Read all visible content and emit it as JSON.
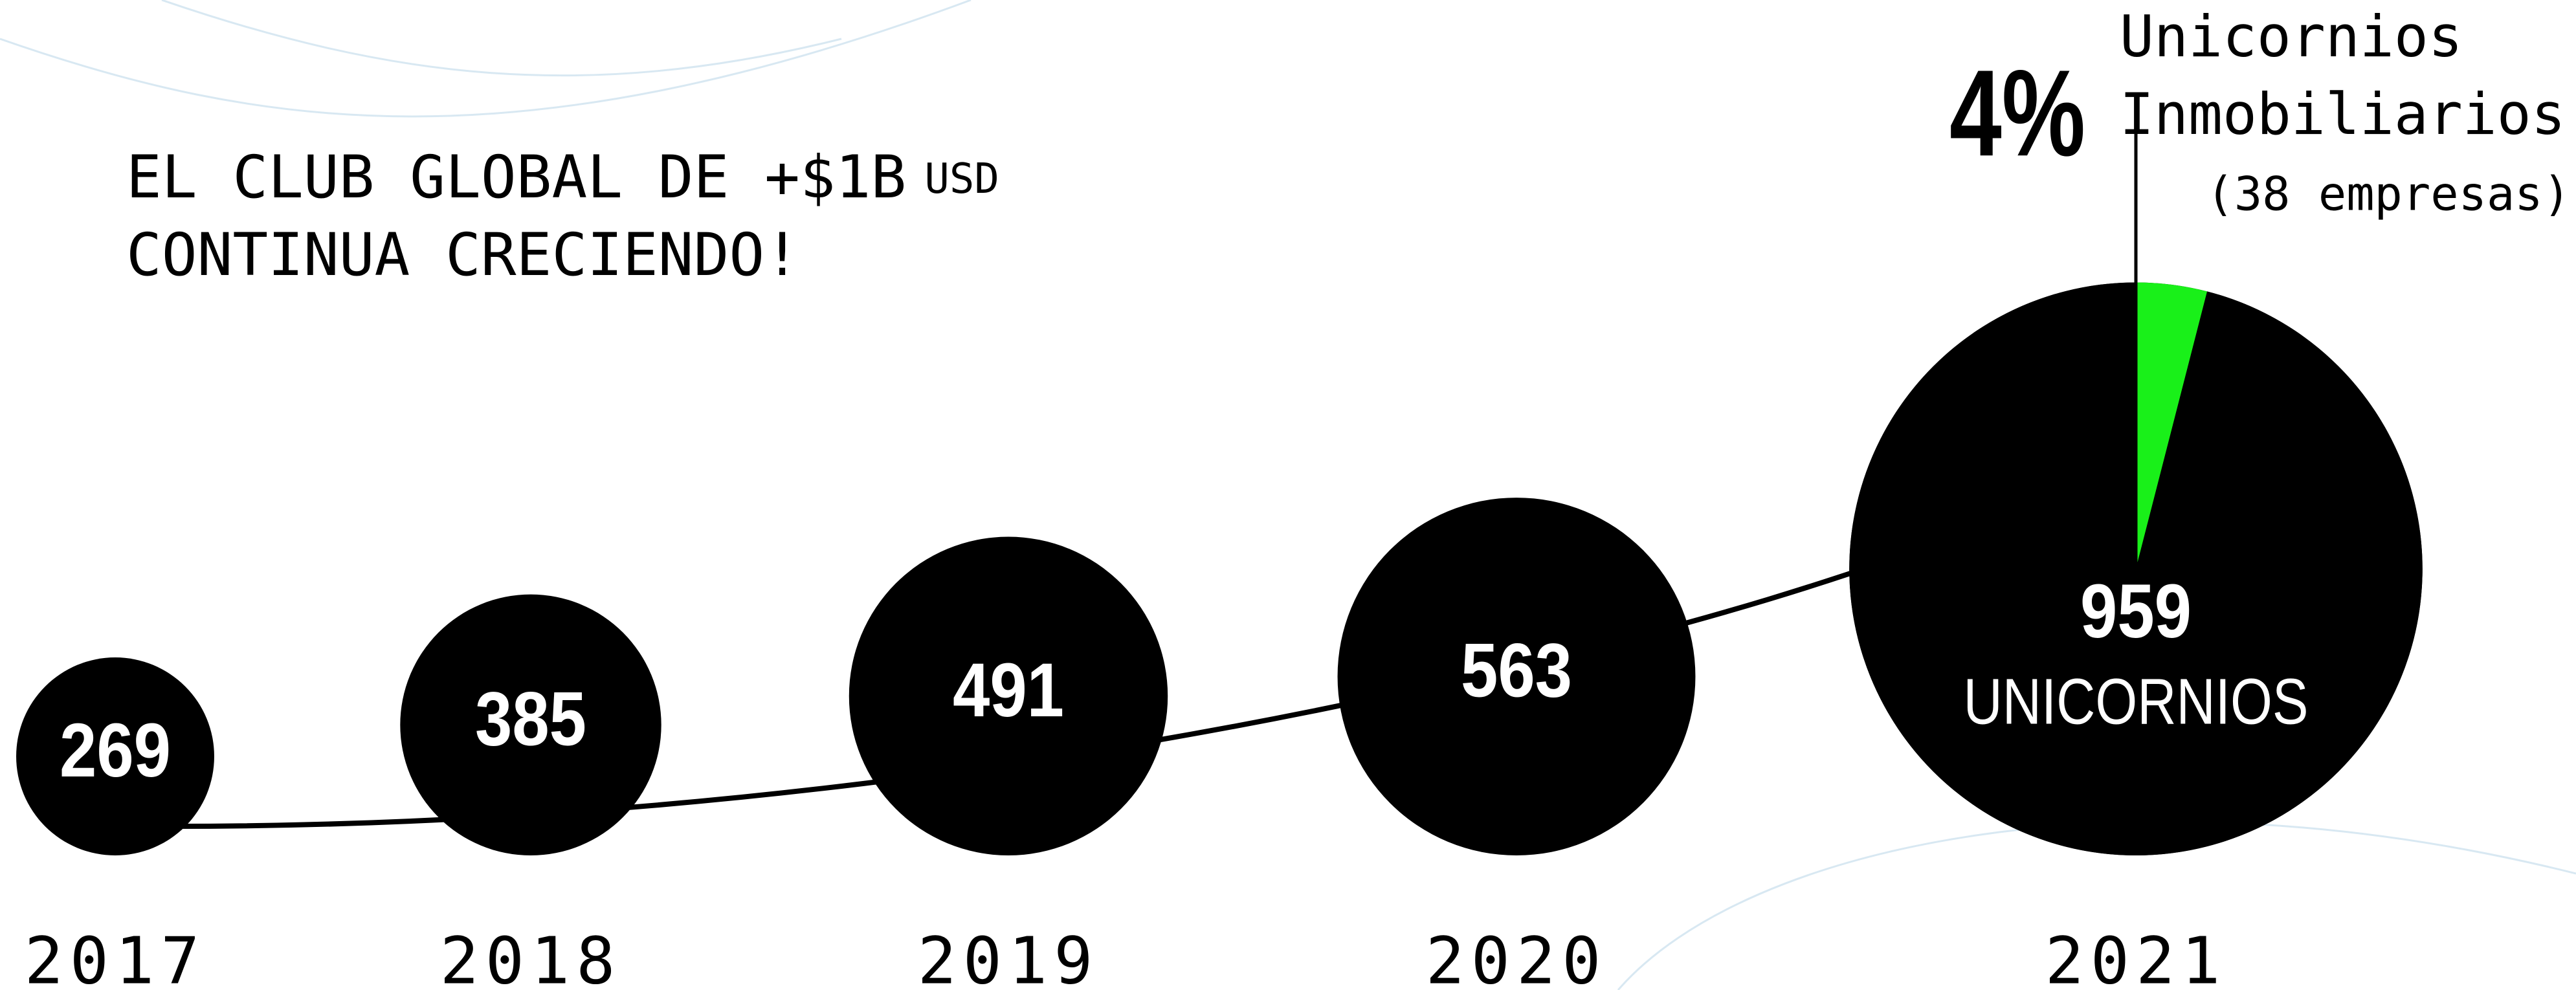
{
  "chart_data": [
    {
      "type": "bubble",
      "title_lines": [
        "EL CLUB GLOBAL DE +$1B",
        "CONTINUA CRECIENDO!"
      ],
      "title_unit": "USD",
      "categories": [
        "2017",
        "2018",
        "2019",
        "2020",
        "2021"
      ],
      "values": [
        269,
        385,
        491,
        563,
        959
      ],
      "color": "#000000",
      "value_color": "#ffffff",
      "last_label": "UNICORNIOS"
    },
    {
      "type": "pie",
      "values": [
        4,
        96
      ],
      "value_labels": [
        "4%",
        null
      ],
      "colors": [
        "#19f019",
        "#000000"
      ],
      "slice_label_lines": [
        "Unicornios",
        "Inmobiliarios"
      ],
      "slice_note": "(38 empresas)"
    }
  ]
}
